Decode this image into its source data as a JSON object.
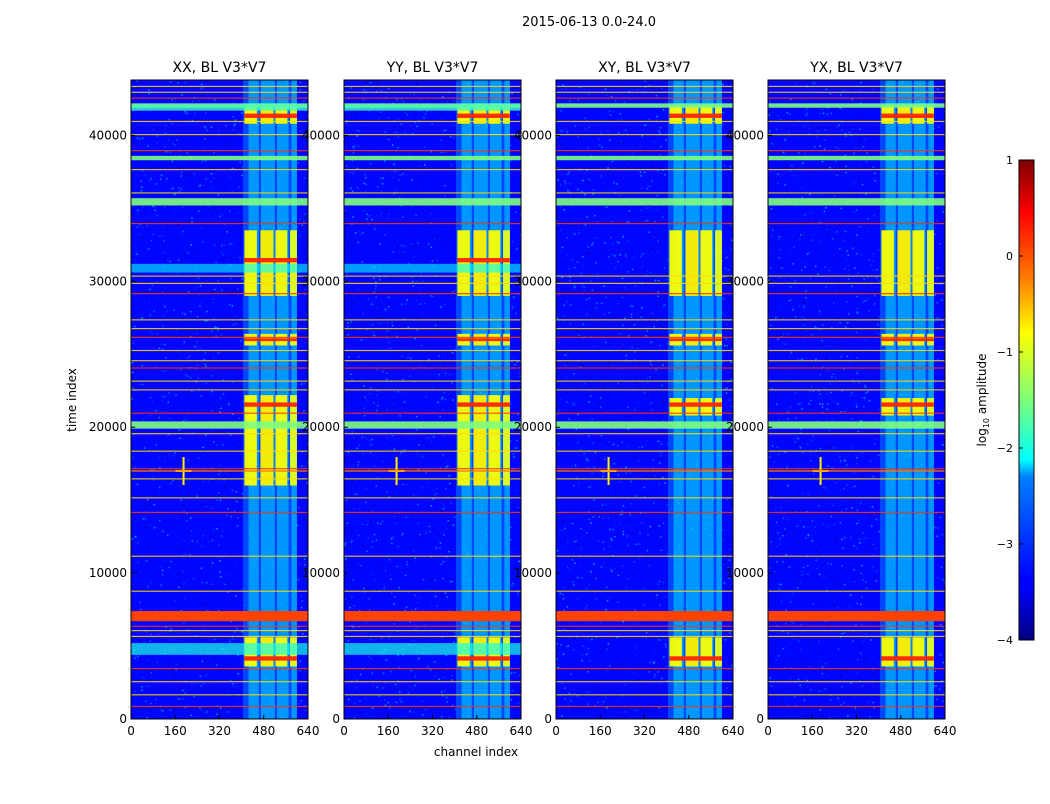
{
  "chart_data": {
    "type": "heatmap",
    "suptitle": "2015-06-13 0.0-24.0",
    "xlabel": "channel index",
    "ylabel": "time index",
    "xlim": [
      0,
      640
    ],
    "ylim": [
      0,
      43800
    ],
    "xticks": [
      0,
      160,
      320,
      480,
      640
    ],
    "yticks": [
      0,
      10000,
      20000,
      30000,
      40000
    ],
    "panels": [
      {
        "title": "XX, BL V3*V7"
      },
      {
        "title": "YY, BL V3*V7"
      },
      {
        "title": "XY, BL V3*V7"
      },
      {
        "title": "YX, BL V3*V7"
      }
    ],
    "colorbar": {
      "label": "log10 amplitude",
      "label_main": "log",
      "label_sub": "10",
      "label_rest": " amplitude",
      "min": -4,
      "max": 1,
      "ticks": [
        1,
        0,
        -1,
        -2,
        -3,
        -4
      ],
      "tick_labels": [
        "1",
        "0",
        "−1",
        "−2",
        "−3",
        "−4"
      ],
      "colormap": "jet"
    },
    "features": {
      "active_channel_band": [
        405,
        600
      ],
      "strong_rfi_time_band": [
        6700,
        7400
      ],
      "bright_block_time_ranges": [
        [
          3600,
          5600
        ],
        [
          16000,
          22200
        ],
        [
          25600,
          26400
        ],
        [
          29000,
          33500
        ],
        [
          40800,
          42000
        ]
      ],
      "cross_pol_bright_ranges": [
        [
          3600,
          5600
        ],
        [
          20800,
          22000
        ],
        [
          25600,
          26400
        ],
        [
          29000,
          33500
        ],
        [
          40800,
          42000
        ]
      ],
      "wideband_rfi_lines": [
        [
          35200,
          35700
        ],
        [
          38300,
          38600
        ],
        [
          41900,
          42200
        ],
        [
          19900,
          20400
        ]
      ],
      "point_source_channel": 190,
      "point_source_time": 17000
    }
  }
}
